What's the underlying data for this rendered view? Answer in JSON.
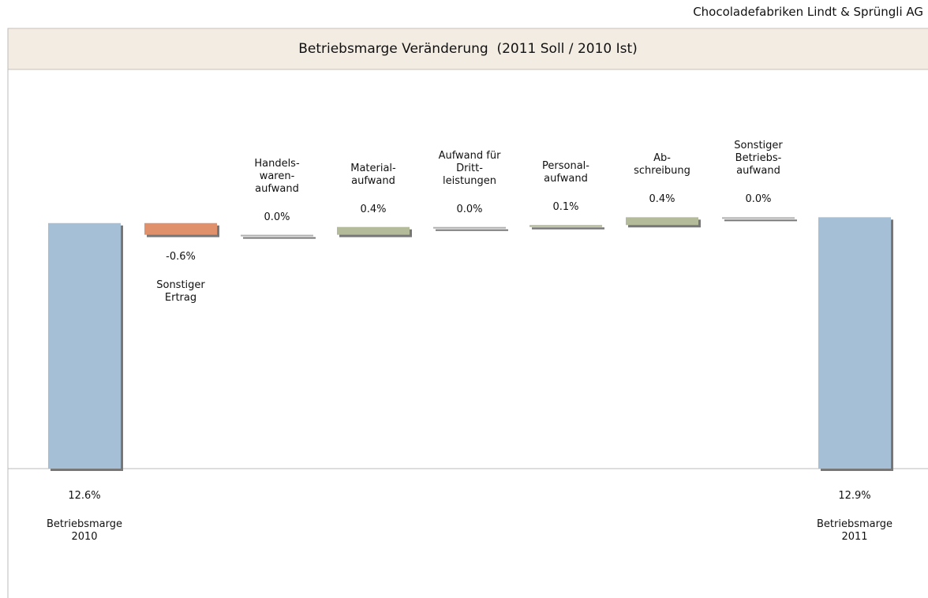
{
  "company": "Chocoladefabriken Lindt & Sprüngli AG",
  "chart_data": {
    "type": "waterfall",
    "title": "Betriebsmarge Veränderung  (2011 Soll / 2010 Ist)",
    "categories": [
      "Betriebsmarge\n2010",
      "Sonstiger\nErtrag",
      "Handels-\nwaren-\naufwand",
      "Material-\naufwand",
      "Aufwand für\nDritt-\nleistungen",
      "Personal-\naufwand",
      "Ab-\nschreibung",
      "Sonstiger\nBetriebs-\naufwand",
      "Betriebsmarge\n2011"
    ],
    "values": [
      12.6,
      -0.6,
      0.0,
      0.4,
      0.0,
      0.1,
      0.4,
      0.0,
      12.9
    ],
    "value_labels": [
      "12.6%",
      "-0.6%",
      "0.0%",
      "0.4%",
      "0.0%",
      "0.1%",
      "0.4%",
      "0.0%",
      "12.9%"
    ],
    "color_total": "#a5bfd7",
    "color_up": "#b3bb9a",
    "color_down": "#e0906a",
    "color_zero": "#b0b0b0"
  }
}
